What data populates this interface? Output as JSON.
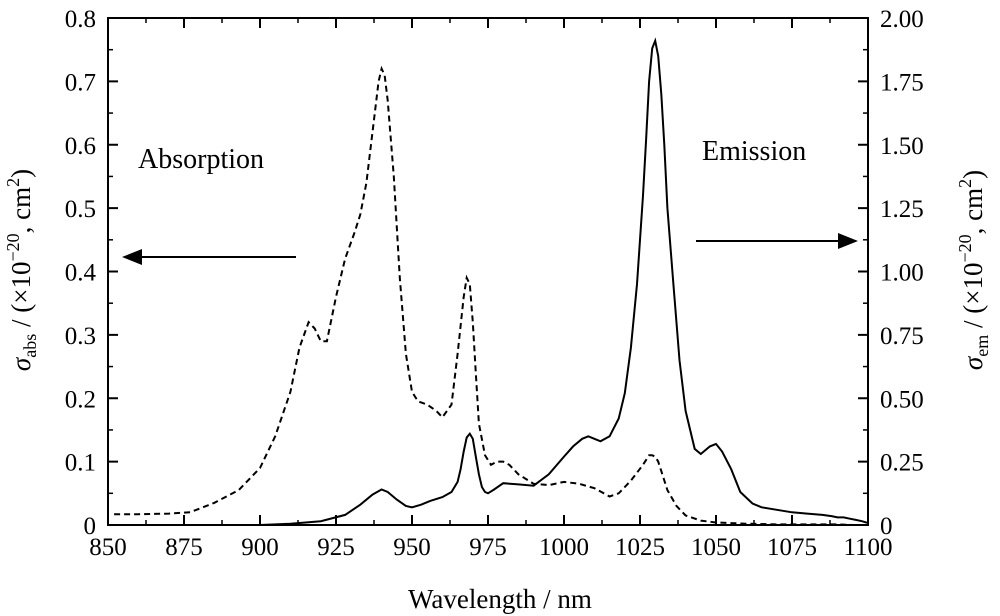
{
  "chart_data": {
    "type": "line",
    "xlabel": "Wavelength / nm",
    "ylabel_left": {
      "sym": "σ",
      "sub": "abs",
      "text": " / (×10",
      "sup": "−20",
      "tail": ", cm",
      "sup2": "2",
      "close": ")"
    },
    "ylabel_right": {
      "sym": "σ",
      "sub": "em",
      "text": " / (×10",
      "sup": "−20",
      "tail": ", cm",
      "sup2": "2",
      "close": ")"
    },
    "xlim": [
      850,
      1100
    ],
    "ylim_left": [
      0,
      0.8
    ],
    "ylim_right": [
      0,
      2.0
    ],
    "x_ticks": [
      850,
      875,
      900,
      925,
      950,
      975,
      1000,
      1025,
      1050,
      1075,
      1100
    ],
    "x_tick_labels": [
      "850",
      "875",
      "900",
      "925",
      "950",
      "975",
      "1000",
      "1025",
      "1050",
      "1075",
      "1100"
    ],
    "y_left_ticks": [
      0,
      0.1,
      0.2,
      0.3,
      0.4,
      0.5,
      0.6,
      0.7,
      0.8
    ],
    "y_left_tick_labels": [
      "0",
      "0.1",
      "0.2",
      "0.3",
      "0.4",
      "0.5",
      "0.6",
      "0.7",
      "0.8"
    ],
    "y_right_ticks": [
      0,
      0.25,
      0.5,
      0.75,
      1.0,
      1.25,
      1.5,
      1.75,
      2.0
    ],
    "y_right_tick_labels": [
      "0",
      "0.25",
      "0.50",
      "0.75",
      "1.00",
      "1.25",
      "1.50",
      "1.75",
      "2.00"
    ],
    "annotations": {
      "absorption": "Absorption",
      "emission": "Emission"
    },
    "series": [
      {
        "axis": "left",
        "style": "dashed",
        "x": [
          852,
          860,
          870,
          877,
          885,
          893,
          900,
          905,
          910,
          913,
          916,
          918,
          920,
          922,
          925,
          928,
          931,
          933,
          935,
          937,
          939,
          940,
          941,
          942,
          944,
          946,
          948,
          950,
          952,
          955,
          958,
          960,
          963,
          965,
          967,
          968,
          969,
          970,
          971,
          972,
          974,
          976,
          978,
          980,
          982,
          985,
          990,
          995,
          1000,
          1005,
          1010,
          1015,
          1018,
          1022,
          1026,
          1028,
          1029,
          1030,
          1031,
          1032,
          1034,
          1037,
          1040,
          1045,
          1050,
          1060,
          1070,
          1080,
          1090,
          1095,
          1098,
          1100
        ],
        "y": [
          0.017,
          0.017,
          0.018,
          0.02,
          0.035,
          0.055,
          0.09,
          0.14,
          0.21,
          0.28,
          0.32,
          0.31,
          0.29,
          0.29,
          0.36,
          0.42,
          0.46,
          0.49,
          0.54,
          0.62,
          0.7,
          0.72,
          0.71,
          0.67,
          0.55,
          0.39,
          0.27,
          0.21,
          0.195,
          0.19,
          0.18,
          0.17,
          0.19,
          0.27,
          0.36,
          0.39,
          0.38,
          0.32,
          0.24,
          0.16,
          0.11,
          0.095,
          0.1,
          0.1,
          0.095,
          0.08,
          0.065,
          0.063,
          0.068,
          0.065,
          0.058,
          0.045,
          0.05,
          0.07,
          0.095,
          0.11,
          0.11,
          0.108,
          0.1,
          0.085,
          0.055,
          0.03,
          0.015,
          0.007,
          0.004,
          0.002,
          0.001,
          0.001,
          0.001,
          0.0,
          0.0,
          0.0
        ]
      },
      {
        "axis": "right",
        "style": "solid",
        "x": [
          900,
          910,
          920,
          928,
          933,
          937,
          940,
          942,
          945,
          948,
          950,
          953,
          956,
          960,
          963,
          965,
          966,
          967,
          968,
          969,
          970,
          971,
          972,
          973,
          974,
          975,
          977,
          980,
          985,
          990,
          995,
          1000,
          1003,
          1006,
          1008,
          1010,
          1012,
          1015,
          1018,
          1020,
          1022,
          1024,
          1026,
          1027,
          1028,
          1029,
          1030,
          1031,
          1032,
          1033,
          1034,
          1036,
          1038,
          1040,
          1043,
          1045,
          1048,
          1050,
          1052,
          1055,
          1058,
          1062,
          1065,
          1070,
          1075,
          1080,
          1085,
          1088,
          1090,
          1092,
          1094,
          1096,
          1098,
          1100
        ],
        "y": [
          0.0,
          0.005,
          0.015,
          0.04,
          0.08,
          0.12,
          0.14,
          0.13,
          0.1,
          0.075,
          0.07,
          0.08,
          0.095,
          0.11,
          0.13,
          0.17,
          0.22,
          0.29,
          0.345,
          0.36,
          0.34,
          0.27,
          0.2,
          0.15,
          0.13,
          0.125,
          0.14,
          0.165,
          0.16,
          0.155,
          0.2,
          0.27,
          0.31,
          0.34,
          0.35,
          0.34,
          0.33,
          0.35,
          0.42,
          0.52,
          0.7,
          0.95,
          1.3,
          1.52,
          1.75,
          1.88,
          1.91,
          1.85,
          1.7,
          1.5,
          1.25,
          0.95,
          0.65,
          0.45,
          0.3,
          0.28,
          0.31,
          0.32,
          0.29,
          0.22,
          0.13,
          0.085,
          0.07,
          0.06,
          0.05,
          0.045,
          0.04,
          0.035,
          0.03,
          0.03,
          0.025,
          0.02,
          0.015,
          0.008
        ]
      }
    ]
  }
}
